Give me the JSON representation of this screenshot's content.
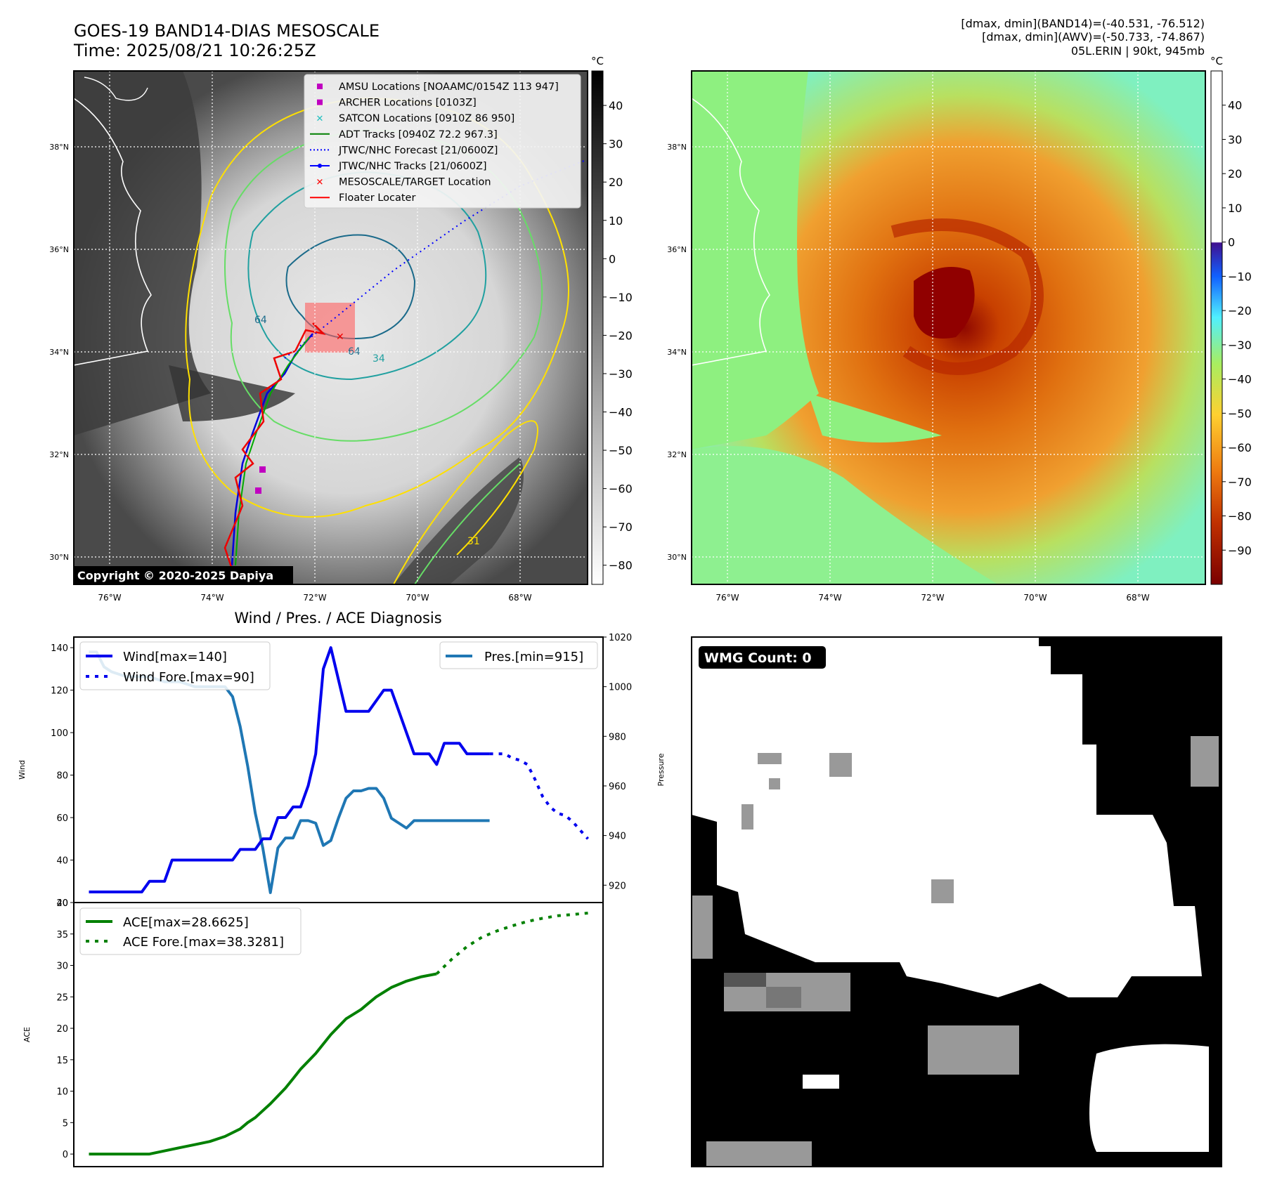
{
  "header": {
    "title_line1": "GOES-19 BAND14-DIAS MESOSCALE",
    "title_line2": "Time: 2025/08/21 10:26:25Z",
    "info_line1": "[dmax, dmin](BAND14)=(-40.531, -76.512)",
    "info_line2": "[dmax, dmin](AWV)=(-50.733, -74.867)",
    "info_line3": "05L.ERIN | 90kt, 945mb"
  },
  "map": {
    "lat_labels": [
      "38°N",
      "36°N",
      "34°N",
      "32°N",
      "30°N"
    ],
    "lon_labels": [
      "76°W",
      "74°W",
      "72°W",
      "70°W",
      "68°W"
    ],
    "copyright": "Copyright © 2020-2025 Dapiya",
    "unit": "°C",
    "gray_cbar_ticks": [
      "40",
      "30",
      "20",
      "10",
      "0",
      "−10",
      "−20",
      "−30",
      "−40",
      "−50",
      "−60",
      "−70",
      "−80"
    ],
    "color_cbar_ticks": [
      "40",
      "30",
      "20",
      "10",
      "0",
      "−10",
      "−20",
      "−30",
      "−40",
      "−50",
      "−60",
      "−70",
      "−80",
      "−90"
    ],
    "legend": [
      {
        "label": "AMSU Locations [NOAAMC/0154Z 113 947]",
        "marker": "square",
        "color": "#c000c0"
      },
      {
        "label": "ARCHER Locations [0103Z]",
        "marker": "square",
        "color": "#c000c0"
      },
      {
        "label": "SATCON Locations [0910Z 86 950]",
        "marker": "x",
        "color": "#20c0c0"
      },
      {
        "label": "ADT Tracks [0940Z 72.2 967.3]",
        "marker": "line",
        "color": "#008000"
      },
      {
        "label": "JTWC/NHC Forecast [21/0600Z]",
        "marker": "dotted",
        "color": "#0000ff"
      },
      {
        "label": "JTWC/NHC Tracks [21/0600Z]",
        "marker": "line-dot",
        "color": "#0000ff"
      },
      {
        "label": "MESOSCALE/TARGET Location",
        "marker": "x",
        "color": "#ff0000"
      },
      {
        "label": "Floater Locater",
        "marker": "line",
        "color": "#ff0000"
      }
    ],
    "contour_labels": [
      "64",
      "34",
      "64",
      "31"
    ]
  },
  "diagnosis": {
    "title": "Wind / Pres. / ACE Diagnosis",
    "wmg_label": "WMG Count: 0"
  },
  "chart_data": [
    {
      "type": "line",
      "title": "Wind / Pres. / ACE Diagnosis",
      "ylabel": "Wind",
      "y2label": "Pressure",
      "ylim": [
        20,
        145
      ],
      "y2lim": [
        913,
        1020
      ],
      "yticks": [
        20,
        40,
        60,
        80,
        100,
        120,
        140
      ],
      "y2ticks": [
        920,
        940,
        960,
        980,
        1000,
        1020
      ],
      "series": [
        {
          "name": "Wind[max=140]",
          "color": "#0000ee",
          "style": "solid",
          "axis": "left",
          "x": [
            0,
            4,
            7,
            8,
            10,
            11,
            13,
            14,
            18,
            19,
            20,
            21,
            22,
            23,
            24,
            25,
            26,
            27,
            28,
            29,
            30,
            31,
            32,
            33,
            34,
            35,
            36,
            37,
            38,
            39,
            40,
            41,
            42,
            43,
            44,
            45,
            46,
            47,
            48,
            49,
            50,
            51,
            52,
            53
          ],
          "y": [
            25,
            25,
            25,
            30,
            30,
            40,
            40,
            40,
            40,
            40,
            45,
            45,
            45,
            50,
            50,
            60,
            60,
            65,
            65,
            75,
            90,
            130,
            140,
            125,
            110,
            110,
            110,
            110,
            115,
            120,
            120,
            110,
            100,
            90,
            90,
            90,
            85,
            95,
            95,
            95,
            90,
            90,
            90,
            90
          ]
        },
        {
          "name": "Wind Fore.[max=90]",
          "color": "#0000ee",
          "style": "dotted",
          "axis": "left",
          "x": [
            53,
            55,
            56,
            57,
            58,
            59,
            60,
            61,
            62,
            63,
            64,
            65,
            66
          ],
          "y": [
            90,
            90,
            88,
            87,
            85,
            78,
            70,
            65,
            62,
            61,
            58,
            54,
            50
          ]
        },
        {
          "name": "Pres.[min=915]",
          "color": "#1f77b4",
          "style": "solid",
          "axis": "right",
          "x": [
            0,
            1,
            2,
            3,
            4,
            5,
            6,
            7,
            8,
            9,
            10,
            11,
            12,
            13,
            14,
            15,
            16,
            17,
            18,
            19,
            20,
            21,
            22,
            23,
            24,
            25,
            26,
            27,
            28,
            29,
            30,
            31,
            32,
            33,
            34,
            35,
            36,
            37,
            38,
            39,
            40,
            41,
            42,
            43,
            44,
            45,
            46,
            47,
            48,
            49,
            50,
            51,
            52,
            53
          ],
          "y": [
            1014,
            1014,
            1008,
            1006,
            1005,
            1004,
            1004,
            1004,
            1004,
            1003,
            1002,
            1002,
            1002,
            1001,
            1000,
            1000,
            1000,
            1000,
            1000,
            996,
            984,
            968,
            949,
            935,
            917,
            935,
            939,
            939,
            946,
            946,
            945,
            936,
            938,
            947,
            955,
            958,
            958,
            959,
            959,
            955,
            947,
            945,
            943,
            946,
            946,
            946,
            946,
            946,
            946,
            946,
            946,
            946,
            946,
            946
          ]
        },
        {
          "name": "ACE[max=28.6625]",
          "color": "#008000",
          "style": "solid",
          "axis": "ace",
          "x": [
            0,
            8,
            10,
            12,
            14,
            16,
            18,
            20,
            21,
            22,
            24,
            26,
            27,
            28,
            30,
            32,
            34,
            36,
            37,
            38,
            40,
            42,
            44,
            46
          ],
          "y": [
            0,
            0,
            0.5,
            1,
            1.5,
            2,
            2.8,
            4,
            5,
            5.8,
            8,
            10.5,
            12,
            13.5,
            16,
            19,
            21.5,
            23,
            24,
            25,
            26.5,
            27.5,
            28.2,
            28.66
          ]
        },
        {
          "name": "ACE Fore.[max=38.3281]",
          "color": "#008000",
          "style": "dotted",
          "axis": "ace",
          "x": [
            46,
            48,
            50,
            52,
            54,
            56,
            58,
            60,
            62,
            64,
            66
          ],
          "y": [
            28.66,
            31,
            33,
            34.5,
            35.5,
            36.3,
            37,
            37.5,
            37.9,
            38.1,
            38.33
          ]
        }
      ],
      "ace_ylabel": "ACE",
      "ace_ylim": [
        -2,
        40
      ],
      "ace_yticks": [
        0,
        5,
        10,
        15,
        20,
        25,
        30,
        35,
        40
      ]
    }
  ]
}
